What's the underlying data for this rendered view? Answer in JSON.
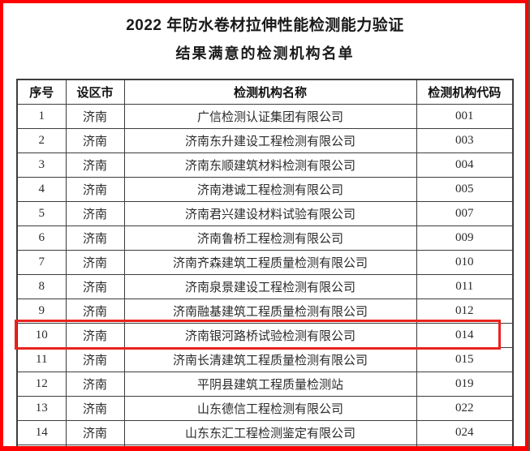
{
  "titles": {
    "line1": "2022 年防水卷材拉伸性能检测能力验证",
    "line2": "结果满意的检测机构名单"
  },
  "table": {
    "headers": {
      "no": "序号",
      "city": "设区市",
      "name": "检测机构名称",
      "code": "检测机构代码"
    },
    "rows": [
      {
        "no": "1",
        "city": "济南",
        "name": "广信检测认证集团有限公司",
        "code": "001"
      },
      {
        "no": "2",
        "city": "济南",
        "name": "济南东升建设工程检测有限公司",
        "code": "003"
      },
      {
        "no": "3",
        "city": "济南",
        "name": "济南东顺建筑材料检测有限公司",
        "code": "004"
      },
      {
        "no": "4",
        "city": "济南",
        "name": "济南港诚工程检测有限公司",
        "code": "005"
      },
      {
        "no": "5",
        "city": "济南",
        "name": "济南君兴建设材料试验有限公司",
        "code": "007"
      },
      {
        "no": "6",
        "city": "济南",
        "name": "济南鲁桥工程检测有限公司",
        "code": "009"
      },
      {
        "no": "7",
        "city": "济南",
        "name": "济南齐森建筑工程质量检测有限公司",
        "code": "010"
      },
      {
        "no": "8",
        "city": "济南",
        "name": "济南泉景建设工程检测有限公司",
        "code": "011"
      },
      {
        "no": "9",
        "city": "济南",
        "name": "济南融基建筑工程质量检测有限公司",
        "code": "012"
      },
      {
        "no": "10",
        "city": "济南",
        "name": "济南银河路桥试验检测有限公司",
        "code": "014"
      },
      {
        "no": "11",
        "city": "济南",
        "name": "济南长清建筑工程质量检测有限公司",
        "code": "015"
      },
      {
        "no": "12",
        "city": "济南",
        "name": "平阴县建筑工程质量检测站",
        "code": "019"
      },
      {
        "no": "13",
        "city": "济南",
        "name": "山东德信工程检测有限公司",
        "code": "022"
      },
      {
        "no": "14",
        "city": "济南",
        "name": "山东东汇工程检测鉴定有限公司",
        "code": "024"
      }
    ],
    "highlighted_row_no": "10"
  },
  "colors": {
    "page_border": "#fe0100",
    "highlight_border": "#e8241f",
    "table_line": "#3d3d3d",
    "text_color": "#2b2b2b"
  }
}
